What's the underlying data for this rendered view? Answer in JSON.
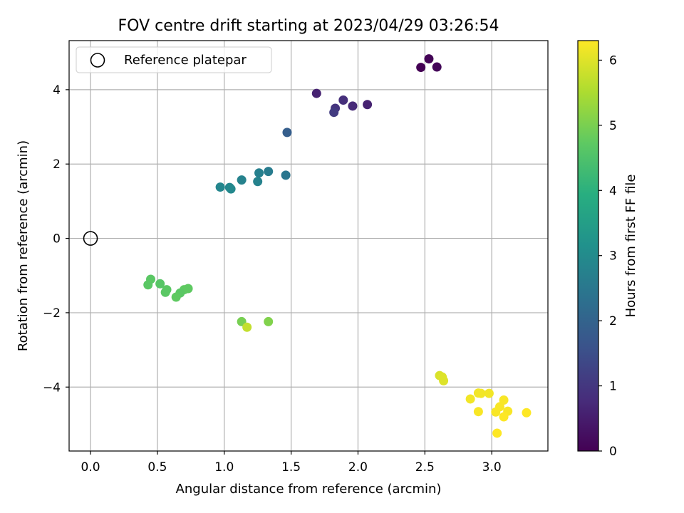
{
  "chart_data": {
    "type": "scatter",
    "title": "FOV centre drift starting at 2023/04/29 03:26:54",
    "xlabel": "Angular distance from reference (arcmin)",
    "ylabel": "Rotation from reference (arcmin)",
    "xlim": [
      -0.16,
      3.42
    ],
    "ylim": [
      -5.72,
      5.32
    ],
    "xticks": [
      0.0,
      0.5,
      1.0,
      1.5,
      2.0,
      2.5,
      3.0
    ],
    "xtick_labels": [
      "0.0",
      "0.5",
      "1.0",
      "1.5",
      "2.0",
      "2.5",
      "3.0"
    ],
    "yticks": [
      -4,
      -2,
      0,
      2,
      4
    ],
    "ytick_labels": [
      "−4",
      "−2",
      "0",
      "2",
      "4"
    ],
    "grid": true,
    "legend": {
      "placement": "upper-left",
      "entries": [
        "Reference platepar"
      ]
    },
    "colorbar": {
      "label": "Hours from first FF file",
      "range": [
        0,
        6.3
      ],
      "ticks": [
        0,
        1,
        2,
        3,
        4,
        5,
        6
      ],
      "tick_labels": [
        "0",
        "1",
        "2",
        "3",
        "4",
        "5",
        "6"
      ],
      "colormap": "viridis"
    },
    "reference_point": {
      "x": 0.0,
      "y": 0.0
    },
    "points": [
      {
        "x": 2.47,
        "y": 4.6,
        "hours": 0.0
      },
      {
        "x": 2.53,
        "y": 4.83,
        "hours": 0.05
      },
      {
        "x": 2.59,
        "y": 4.61,
        "hours": 0.1
      },
      {
        "x": 1.69,
        "y": 3.9,
        "hours": 0.6
      },
      {
        "x": 2.07,
        "y": 3.6,
        "hours": 0.6
      },
      {
        "x": 1.96,
        "y": 3.56,
        "hours": 0.75
      },
      {
        "x": 1.89,
        "y": 3.72,
        "hours": 0.85
      },
      {
        "x": 1.83,
        "y": 3.5,
        "hours": 0.95
      },
      {
        "x": 1.82,
        "y": 3.39,
        "hours": 1.1
      },
      {
        "x": 1.47,
        "y": 2.85,
        "hours": 1.9
      },
      {
        "x": 1.33,
        "y": 1.8,
        "hours": 2.65
      },
      {
        "x": 1.26,
        "y": 1.76,
        "hours": 2.75
      },
      {
        "x": 1.46,
        "y": 1.7,
        "hours": 2.5
      },
      {
        "x": 1.13,
        "y": 1.57,
        "hours": 2.8
      },
      {
        "x": 1.25,
        "y": 1.53,
        "hours": 2.8
      },
      {
        "x": 0.97,
        "y": 1.38,
        "hours": 2.9
      },
      {
        "x": 1.04,
        "y": 1.37,
        "hours": 2.9
      },
      {
        "x": 1.05,
        "y": 1.33,
        "hours": 2.95
      },
      {
        "x": 0.45,
        "y": -1.1,
        "hours": 4.7
      },
      {
        "x": 0.43,
        "y": -1.25,
        "hours": 4.7
      },
      {
        "x": 0.52,
        "y": -1.22,
        "hours": 4.65
      },
      {
        "x": 0.73,
        "y": -1.35,
        "hours": 4.75
      },
      {
        "x": 0.7,
        "y": -1.38,
        "hours": 4.75
      },
      {
        "x": 0.57,
        "y": -1.38,
        "hours": 4.7
      },
      {
        "x": 0.56,
        "y": -1.45,
        "hours": 4.7
      },
      {
        "x": 0.67,
        "y": -1.47,
        "hours": 4.7
      },
      {
        "x": 0.64,
        "y": -1.58,
        "hours": 4.75
      },
      {
        "x": 1.13,
        "y": -2.24,
        "hours": 5.0
      },
      {
        "x": 1.33,
        "y": -2.24,
        "hours": 5.1
      },
      {
        "x": 1.17,
        "y": -2.39,
        "hours": 5.75
      },
      {
        "x": 2.61,
        "y": -3.69,
        "hours": 5.95
      },
      {
        "x": 2.63,
        "y": -3.73,
        "hours": 6.0
      },
      {
        "x": 2.64,
        "y": -3.83,
        "hours": 6.0
      },
      {
        "x": 2.9,
        "y": -4.16,
        "hours": 6.2
      },
      {
        "x": 2.92,
        "y": -4.17,
        "hours": 6.2
      },
      {
        "x": 2.98,
        "y": -4.17,
        "hours": 6.2
      },
      {
        "x": 2.84,
        "y": -4.32,
        "hours": 6.2
      },
      {
        "x": 3.09,
        "y": -4.35,
        "hours": 6.25
      },
      {
        "x": 3.06,
        "y": -4.53,
        "hours": 6.25
      },
      {
        "x": 3.12,
        "y": -4.65,
        "hours": 6.25
      },
      {
        "x": 2.9,
        "y": -4.66,
        "hours": 6.25
      },
      {
        "x": 3.03,
        "y": -4.67,
        "hours": 6.25
      },
      {
        "x": 3.26,
        "y": -4.69,
        "hours": 6.3
      },
      {
        "x": 3.09,
        "y": -4.8,
        "hours": 6.3
      },
      {
        "x": 3.04,
        "y": -5.24,
        "hours": 6.3
      }
    ]
  }
}
